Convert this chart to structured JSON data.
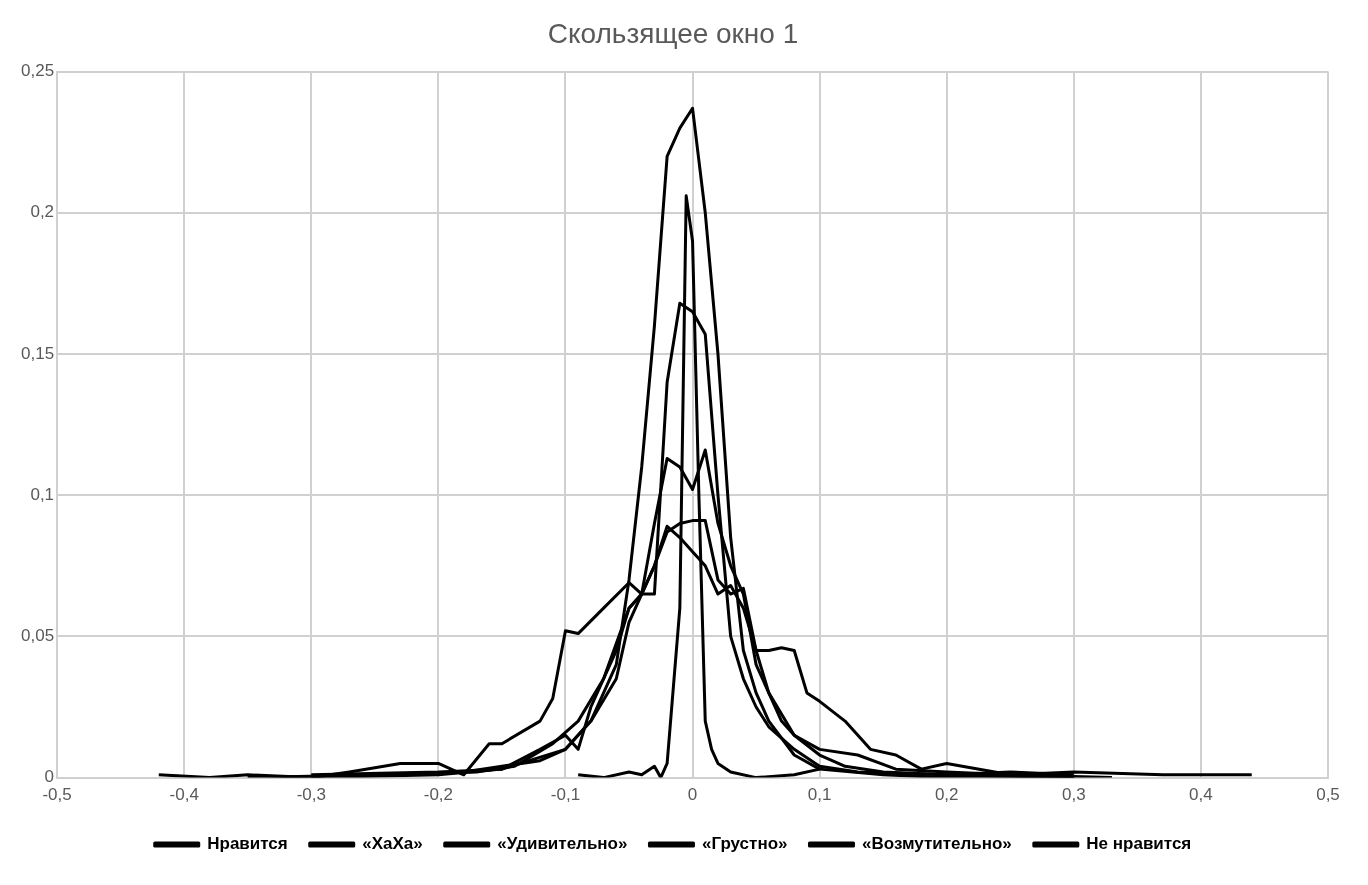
{
  "chart_data": {
    "type": "line",
    "title": "Скользящее окно 1",
    "legend": "bottom",
    "grid": true,
    "marker": "none",
    "line_style": "solid",
    "xlim": [
      -0.5,
      0.5
    ],
    "xticks": [
      {
        "value": -0.5,
        "label": "-0,5"
      },
      {
        "value": -0.4,
        "label": "-0,4"
      },
      {
        "value": -0.3,
        "label": "-0,3"
      },
      {
        "value": -0.2,
        "label": "-0,2"
      },
      {
        "value": -0.1,
        "label": "-0,1"
      },
      0,
      {
        "value": 0.1,
        "label": "0,1"
      },
      {
        "value": 0.2,
        "label": "0,2"
      },
      {
        "value": 0.3,
        "label": "0,3"
      },
      {
        "value": 0.4,
        "label": "0,4"
      },
      {
        "value": 0.5,
        "label": "0,5"
      }
    ],
    "ylim": [
      0,
      0.25
    ],
    "yticks": [
      0,
      {
        "value": 0.05,
        "label": "0,05"
      },
      {
        "value": 0.1,
        "label": "0,1"
      },
      {
        "value": 0.15,
        "label": "0,15"
      },
      {
        "value": 0.2,
        "label": "0,2"
      },
      {
        "value": 0.25,
        "label": "0,25"
      }
    ],
    "series": [
      {
        "name": "Нравится",
        "color": "#000000",
        "x": [
          -0.3,
          -0.2,
          -0.15,
          -0.1,
          -0.08,
          -0.06,
          -0.05,
          -0.04,
          -0.03,
          -0.02,
          -0.01,
          0,
          0.01,
          0.02,
          0.03,
          0.04,
          0.05,
          0.06,
          0.08,
          0.1,
          0.15,
          0.2,
          0.3
        ],
        "values": [
          0,
          0.001,
          0.003,
          0.01,
          0.02,
          0.04,
          0.07,
          0.11,
          0.16,
          0.22,
          0.23,
          0.237,
          0.2,
          0.15,
          0.085,
          0.045,
          0.03,
          0.02,
          0.008,
          0.003,
          0.001,
          0,
          0
        ]
      },
      {
        "name": "«ХаХа»",
        "color": "#000000",
        "x": [
          -0.09,
          -0.07,
          -0.05,
          -0.04,
          -0.03,
          -0.025,
          -0.02,
          -0.01,
          -0.005,
          0,
          0.005,
          0.01,
          0.015,
          0.02,
          0.03,
          0.05,
          0.08,
          0.1
        ],
        "values": [
          0.001,
          0,
          0.002,
          0.001,
          0.004,
          0,
          0.005,
          0.06,
          0.206,
          0.19,
          0.1,
          0.02,
          0.01,
          0.005,
          0.002,
          0,
          0.001,
          0.003
        ]
      },
      {
        "name": "«Удивительно»",
        "color": "#000000",
        "x": [
          -0.35,
          -0.25,
          -0.18,
          -0.15,
          -0.12,
          -0.1,
          -0.08,
          -0.06,
          -0.05,
          -0.04,
          -0.03,
          -0.02,
          -0.01,
          0,
          0.01,
          0.02,
          0.03,
          0.04,
          0.05,
          0.06,
          0.08,
          0.1,
          0.13,
          0.2,
          0.3
        ],
        "values": [
          0,
          0.001,
          0.002,
          0.004,
          0.006,
          0.01,
          0.02,
          0.035,
          0.055,
          0.065,
          0.065,
          0.14,
          0.168,
          0.165,
          0.157,
          0.1,
          0.05,
          0.035,
          0.025,
          0.018,
          0.01,
          0.004,
          0.002,
          0.001,
          0
        ]
      },
      {
        "name": "«Грустно»",
        "color": "#000000",
        "x": [
          -0.3,
          -0.2,
          -0.15,
          -0.12,
          -0.1,
          -0.09,
          -0.08,
          -0.06,
          -0.05,
          -0.04,
          -0.03,
          -0.02,
          -0.01,
          0,
          0.01,
          0.02,
          0.03,
          0.04,
          0.05,
          0.07,
          0.08,
          0.1,
          0.12,
          0.15,
          0.2,
          0.25,
          0.3
        ],
        "values": [
          0.001,
          0.002,
          0.003,
          0.01,
          0.015,
          0.01,
          0.025,
          0.045,
          0.06,
          0.065,
          0.09,
          0.113,
          0.11,
          0.102,
          0.116,
          0.09,
          0.075,
          0.065,
          0.04,
          0.02,
          0.015,
          0.008,
          0.004,
          0.002,
          0.001,
          0.002,
          0.001
        ]
      },
      {
        "name": "«Возмутительно»",
        "color": "#000000",
        "x": [
          -0.25,
          -0.17,
          -0.14,
          -0.11,
          -0.09,
          -0.07,
          -0.05,
          -0.04,
          -0.03,
          -0.02,
          -0.01,
          0,
          0.01,
          0.02,
          0.03,
          0.04,
          0.05,
          0.06,
          0.08,
          0.1,
          0.13,
          0.16,
          0.2,
          0.25,
          0.33
        ],
        "values": [
          0.001,
          0.002,
          0.004,
          0.012,
          0.02,
          0.035,
          0.06,
          0.065,
          0.075,
          0.087,
          0.09,
          0.091,
          0.091,
          0.07,
          0.065,
          0.067,
          0.045,
          0.03,
          0.015,
          0.01,
          0.008,
          0.003,
          0.002,
          0.001,
          0
        ]
      },
      {
        "name": "Не нравится",
        "color": "#000000",
        "x": [
          -0.42,
          -0.38,
          -0.35,
          -0.3,
          -0.27,
          -0.23,
          -0.2,
          -0.18,
          -0.16,
          -0.15,
          -0.12,
          -0.11,
          -0.1,
          -0.09,
          -0.07,
          -0.05,
          -0.04,
          -0.03,
          -0.02,
          -0.01,
          0,
          0.01,
          0.02,
          0.03,
          0.04,
          0.05,
          0.06,
          0.07,
          0.08,
          0.09,
          0.1,
          0.12,
          0.14,
          0.16,
          0.18,
          0.2,
          0.25,
          0.3,
          0.37,
          0.44
        ],
        "values": [
          0.001,
          0,
          0.001,
          0,
          0.002,
          0.005,
          0.005,
          0.001,
          0.012,
          0.012,
          0.02,
          0.028,
          0.052,
          0.051,
          0.06,
          0.069,
          0.065,
          0.075,
          0.089,
          0.085,
          0.08,
          0.075,
          0.065,
          0.068,
          0.06,
          0.045,
          0.045,
          0.046,
          0.045,
          0.03,
          0.027,
          0.02,
          0.01,
          0.008,
          0.003,
          0.005,
          0.001,
          0.002,
          0.001,
          0.001
        ]
      }
    ]
  }
}
